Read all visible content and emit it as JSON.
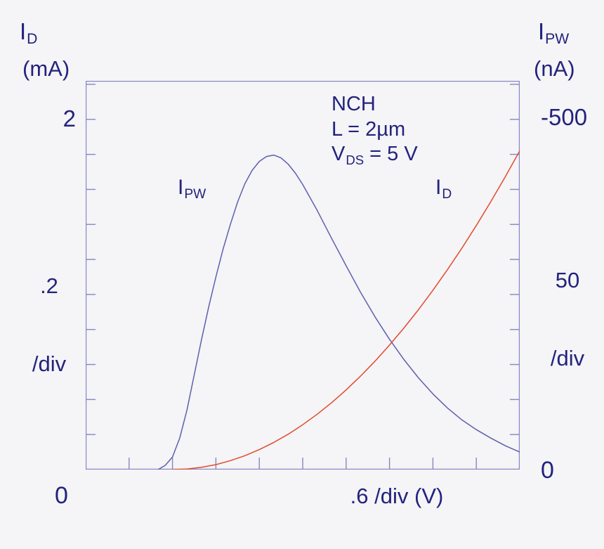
{
  "chart_data": {
    "type": "line",
    "colors": {
      "background": "#f5f4f6",
      "frame": "#8587c3",
      "text": "#23237d",
      "ipw_curve": "#5d60ae",
      "id_curve": "#e04b2f"
    },
    "left_axis": {
      "symbol": "I",
      "symbol_sub": "D",
      "unit": "(mA)",
      "top_tick_label": "2",
      "scale_value": ".2",
      "scale_word": "/div",
      "origin_label": "0"
    },
    "right_axis": {
      "symbol": "I",
      "symbol_sub": "PW",
      "unit": "(nA)",
      "top_tick_label": "-500",
      "scale_value": "50",
      "scale_word": "/div",
      "origin_label": "0"
    },
    "x_axis": {
      "scale_label": ".6 /div (V)",
      "volts_per_div": 0.6
    },
    "inset": {
      "line1": "NCH",
      "line2": "L = 2µm",
      "line3_symbol": "V",
      "line3_sub": "DS",
      "line3_rest": " = 5 V"
    },
    "curve_labels": {
      "ipw_symbol": "I",
      "ipw_sub": "PW",
      "id_symbol": "I",
      "id_sub": "D"
    },
    "x_range": [
      0,
      6
    ],
    "left_range_mA": [
      0,
      2.22
    ],
    "right_range_nA": [
      0,
      555
    ],
    "x_ticks": [
      0.6,
      1.2,
      1.8,
      2.4,
      3.0,
      3.6,
      4.2,
      4.8,
      5.4
    ],
    "left_ticks_mA": [
      0.2,
      0.4,
      0.6,
      0.8,
      1.0,
      1.2,
      1.4,
      1.6,
      1.8,
      2.0,
      2.2
    ],
    "right_ticks_nA": [
      50,
      100,
      150,
      200,
      250,
      300,
      350,
      400,
      450,
      500,
      550
    ],
    "series": [
      {
        "name": "I_PW",
        "axis": "right",
        "units": "nA",
        "color": "#5d60ae",
        "points": [
          [
            1.0,
            0
          ],
          [
            1.1,
            6
          ],
          [
            1.2,
            18
          ],
          [
            1.3,
            45
          ],
          [
            1.4,
            85
          ],
          [
            1.5,
            135
          ],
          [
            1.6,
            185
          ],
          [
            1.7,
            232
          ],
          [
            1.8,
            275
          ],
          [
            1.9,
            315
          ],
          [
            2.0,
            350
          ],
          [
            2.1,
            382
          ],
          [
            2.2,
            408
          ],
          [
            2.3,
            427
          ],
          [
            2.4,
            440
          ],
          [
            2.5,
            447
          ],
          [
            2.6,
            449
          ],
          [
            2.7,
            445
          ],
          [
            2.8,
            436
          ],
          [
            2.9,
            423
          ],
          [
            3.0,
            407
          ],
          [
            3.2,
            370
          ],
          [
            3.4,
            330
          ],
          [
            3.6,
            291
          ],
          [
            3.8,
            253
          ],
          [
            4.0,
            218
          ],
          [
            4.2,
            186
          ],
          [
            4.4,
            157
          ],
          [
            4.6,
            131
          ],
          [
            4.8,
            108
          ],
          [
            5.0,
            88
          ],
          [
            5.2,
            71
          ],
          [
            5.4,
            57
          ],
          [
            5.6,
            45
          ],
          [
            5.8,
            34
          ],
          [
            6.0,
            25
          ]
        ]
      },
      {
        "name": "I_D",
        "axis": "left",
        "units": "mA",
        "color": "#e04b2f",
        "points": [
          [
            1.2,
            0
          ],
          [
            1.4,
            0.003
          ],
          [
            1.6,
            0.013
          ],
          [
            1.8,
            0.028
          ],
          [
            2.0,
            0.051
          ],
          [
            2.2,
            0.079
          ],
          [
            2.4,
            0.114
          ],
          [
            2.6,
            0.155
          ],
          [
            2.8,
            0.202
          ],
          [
            3.0,
            0.256
          ],
          [
            3.2,
            0.316
          ],
          [
            3.4,
            0.382
          ],
          [
            3.6,
            0.455
          ],
          [
            3.8,
            0.534
          ],
          [
            4.0,
            0.619
          ],
          [
            4.2,
            0.711
          ],
          [
            4.4,
            0.809
          ],
          [
            4.6,
            0.913
          ],
          [
            4.8,
            1.024
          ],
          [
            5.0,
            1.141
          ],
          [
            5.2,
            1.264
          ],
          [
            5.4,
            1.394
          ],
          [
            5.6,
            1.53
          ],
          [
            5.8,
            1.672
          ],
          [
            6.0,
            1.82
          ]
        ]
      }
    ]
  }
}
